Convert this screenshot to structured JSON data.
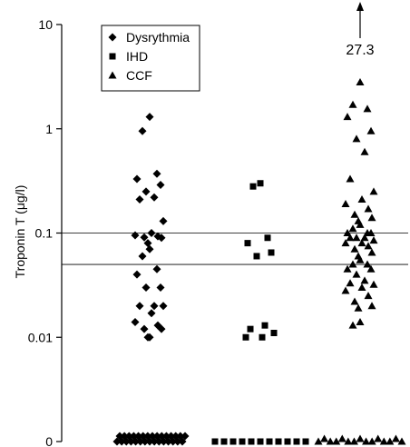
{
  "chart_data": {
    "type": "scatter",
    "title": "",
    "xlabel": "",
    "ylabel": "Troponin T (μg/l)",
    "y_scale": "log",
    "ylim": [
      0.001,
      10
    ],
    "y_ticks": [
      {
        "value": 10,
        "label": "10"
      },
      {
        "value": 1,
        "label": "1"
      },
      {
        "value": 0.1,
        "label": "0.1"
      },
      {
        "value": 0.01,
        "label": "0.01"
      },
      {
        "value": 0.001,
        "label": "0"
      }
    ],
    "reference_lines": [
      0.1,
      0.05
    ],
    "grid": false,
    "legend_position": "top-left",
    "series": [
      {
        "name": "Dysrythmia",
        "marker": "diamond",
        "values": [
          1.3,
          0.95,
          0.37,
          0.33,
          0.29,
          0.25,
          0.22,
          0.21,
          0.13,
          0.1,
          0.095,
          0.093,
          0.091,
          0.09,
          0.08,
          0.07,
          0.06,
          0.045,
          0.04,
          0.03,
          0.03,
          0.02,
          0.02,
          0.02,
          0.017,
          0.014,
          0.013,
          0.012,
          0.012,
          0.01,
          0.01,
          0.001,
          0.001,
          0.001,
          0.001,
          0.001,
          0.001,
          0.001,
          0.001,
          0.001,
          0.001,
          0.001,
          0.001,
          0.001,
          0.001,
          0.001,
          0.001,
          0.001,
          0.001,
          0.001,
          0.001,
          0.001,
          0.001,
          0.001,
          0.001,
          0.001,
          0.001,
          0.001,
          0.001,
          0.001,
          0.001
        ]
      },
      {
        "name": "IHD",
        "marker": "square",
        "values": [
          0.3,
          0.28,
          0.09,
          0.08,
          0.065,
          0.06,
          0.013,
          0.012,
          0.011,
          0.01,
          0.01,
          0.001,
          0.001,
          0.001,
          0.001,
          0.001,
          0.001,
          0.001,
          0.001,
          0.001,
          0.001,
          0.001
        ]
      },
      {
        "name": "CCF",
        "marker": "triangle",
        "values": [
          2.8,
          1.7,
          1.55,
          1.3,
          0.95,
          0.8,
          0.6,
          0.33,
          0.25,
          0.21,
          0.19,
          0.17,
          0.15,
          0.14,
          0.13,
          0.12,
          0.11,
          0.1,
          0.1,
          0.1,
          0.09,
          0.09,
          0.09,
          0.085,
          0.08,
          0.08,
          0.075,
          0.07,
          0.065,
          0.06,
          0.055,
          0.05,
          0.05,
          0.045,
          0.045,
          0.04,
          0.035,
          0.033,
          0.032,
          0.03,
          0.028,
          0.025,
          0.022,
          0.02,
          0.019,
          0.014,
          0.013,
          0.001,
          0.001,
          0.001,
          0.001,
          0.001,
          0.001,
          0.001,
          0.001,
          0.001,
          0.001,
          0.001,
          0.001,
          0.001,
          0.001,
          0.001
        ]
      }
    ],
    "annotations": [
      {
        "text": "27.3",
        "series": "CCF",
        "value": 27.3,
        "arrow": "up"
      }
    ]
  }
}
